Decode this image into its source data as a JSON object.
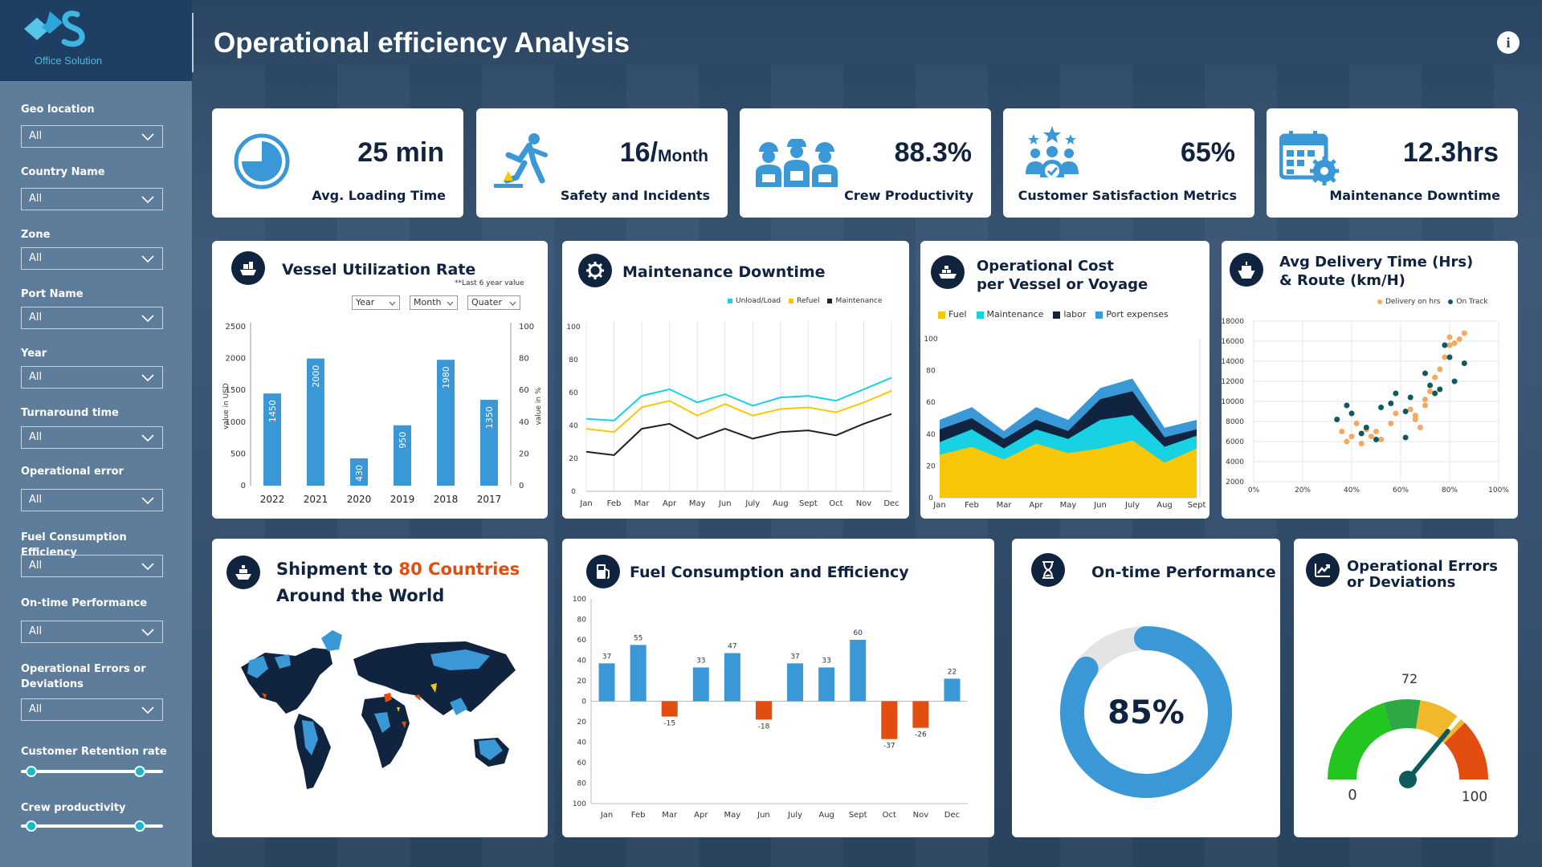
{
  "app": {
    "title": "Operational efficiency Analysis",
    "logo_text": "Office Solution",
    "info_symbol": "i"
  },
  "colors": {
    "navy": "#10233f",
    "blue": "#3a98d6",
    "cyan": "#18d1e3",
    "yellow": "#f9c708",
    "orange": "#e24e0f",
    "green": "#29cc2b"
  },
  "filters": [
    {
      "label": "Geo location",
      "value": "All"
    },
    {
      "label": "Country Name",
      "value": "All"
    },
    {
      "label": "Zone",
      "value": "All"
    },
    {
      "label": "Port Name",
      "value": "All"
    },
    {
      "label": "Year",
      "value": "All"
    },
    {
      "label": "Turnaround time",
      "value": "All"
    },
    {
      "label": "Operational error",
      "value": "All"
    },
    {
      "label": "Fuel Consumption Efficiency",
      "value": "All"
    },
    {
      "label": "On-time Performance",
      "value": "All"
    },
    {
      "label": "Operational Errors or Deviations",
      "value": "All"
    }
  ],
  "sliders": [
    {
      "label": "Customer Retention rate",
      "low": 0,
      "high": 1
    },
    {
      "label": "Crew productivity",
      "low": 0,
      "high": 1
    }
  ],
  "kpis": [
    {
      "value": "25 min",
      "label": "Avg. Loading Time",
      "icon": "clock-icon"
    },
    {
      "value": "16/",
      "unit": "Month",
      "label": "Safety and Incidents",
      "icon": "slip-hazard-icon"
    },
    {
      "value": "88.3%",
      "label": "Crew Productivity",
      "icon": "workers-icon"
    },
    {
      "value": "65%",
      "label": "Customer Satisfaction Metrics",
      "icon": "star-people-icon"
    },
    {
      "value": "12.3hrs",
      "label": "Maintenance Downtime",
      "icon": "calendar-gear-icon"
    }
  ],
  "vessel": {
    "title": "Vessel Utilization Rate",
    "note": "**Last 6 year value",
    "selectors": [
      "Year",
      "Month",
      "Quater"
    ],
    "chart_data": {
      "type": "bar",
      "categories": [
        "2022",
        "2021",
        "2020",
        "2019",
        "2018",
        "2017"
      ],
      "values": [
        1450,
        2000,
        430,
        950,
        1980,
        1350
      ],
      "y_ticks": [
        "2500",
        "2000",
        "1500",
        "1000",
        "500",
        "0"
      ],
      "y2_ticks": [
        "100",
        "80",
        "60",
        "40",
        "20",
        "0"
      ],
      "ylabel": "value in USD",
      "y2label": "value in %",
      "ylim": [
        0,
        2500
      ]
    }
  },
  "maint": {
    "title": "Maintenance Downtime",
    "chart_data": {
      "type": "line",
      "categories": [
        "Jan",
        "Feb",
        "Mar",
        "Apr",
        "May",
        "Jun",
        "July",
        "Aug",
        "Sept",
        "Oct",
        "Nov",
        "Dec"
      ],
      "y_ticks": [
        "100",
        "80",
        "60",
        "40",
        "20",
        "0"
      ],
      "ylim": [
        0,
        100
      ],
      "series": [
        {
          "name": "Unload/Load",
          "color": "#18d1e3",
          "values": [
            44,
            43,
            58,
            62,
            54,
            59,
            52,
            57,
            58,
            55,
            62,
            69
          ]
        },
        {
          "name": "Refuel",
          "color": "#f9c708",
          "values": [
            38,
            36,
            51,
            55,
            46,
            53,
            46,
            50,
            51,
            48,
            54,
            61
          ]
        },
        {
          "name": "Maintenance",
          "color": "#222222",
          "values": [
            24,
            22,
            38,
            41,
            32,
            38,
            32,
            36,
            37,
            34,
            41,
            47
          ]
        }
      ]
    }
  },
  "opcost": {
    "title1": "Operational Cost",
    "title2": "per Vessel or Voyage",
    "chart_data": {
      "type": "area",
      "categories": [
        "Jan",
        "Feb",
        "Mar",
        "Apr",
        "May",
        "Jun",
        "July",
        "Aug",
        "Sept"
      ],
      "y_ticks": [
        "100",
        "80",
        "60",
        "40",
        "20",
        "0"
      ],
      "ylim": [
        0,
        100
      ],
      "series": [
        {
          "name": "Fuel",
          "color": "#f9c708",
          "values": [
            27,
            32,
            24,
            34,
            28,
            31,
            36,
            22,
            31
          ]
        },
        {
          "name": "Maintenance",
          "color": "#18d1e3",
          "values": [
            8,
            11,
            7,
            9,
            9,
            18,
            16,
            10,
            8
          ]
        },
        {
          "name": "labor",
          "color": "#10233f",
          "values": [
            8,
            7,
            6,
            6,
            5,
            13,
            15,
            6,
            4
          ]
        },
        {
          "name": "Port expenses",
          "color": "#3a98d6",
          "values": [
            6,
            7,
            5,
            8,
            7,
            7,
            8,
            6,
            6
          ]
        }
      ]
    }
  },
  "delivery": {
    "title1": "Avg Delivery Time (Hrs)",
    "title2": "& Route (km/H)",
    "chart_data": {
      "type": "scatter",
      "y_ticks": [
        "18000",
        "16000",
        "14000",
        "12000",
        "10000",
        "8000",
        "6000",
        "4000",
        "2000"
      ],
      "x_ticks": [
        "0%",
        "20%",
        "40%",
        "60%",
        "80%",
        "100%"
      ],
      "ylim": [
        2000,
        18000
      ],
      "xlim": [
        0,
        100
      ],
      "series": [
        {
          "name": "Delivery on hrs",
          "color": "#f4a860",
          "points": [
            [
              36,
              7000
            ],
            [
              38,
              6000
            ],
            [
              40,
              6500
            ],
            [
              42,
              7800
            ],
            [
              44,
              5800
            ],
            [
              46,
              7200
            ],
            [
              48,
              6500
            ],
            [
              50,
              7000
            ],
            [
              52,
              6200
            ],
            [
              56,
              7800
            ],
            [
              58,
              8800
            ],
            [
              64,
              9200
            ],
            [
              66,
              8600
            ],
            [
              68,
              7400
            ],
            [
              70,
              10200
            ],
            [
              72,
              11000
            ],
            [
              74,
              12400
            ],
            [
              76,
              13200
            ],
            [
              78,
              14400
            ],
            [
              80,
              15600
            ],
            [
              80,
              16400
            ],
            [
              82,
              15800
            ],
            [
              84,
              16200
            ],
            [
              86,
              16800
            ],
            [
              70,
              9600
            ],
            [
              66,
              8200
            ]
          ]
        },
        {
          "name": "On Track",
          "color": "#0d5b5e",
          "points": [
            [
              34,
              8200
            ],
            [
              38,
              9600
            ],
            [
              40,
              8800
            ],
            [
              44,
              6800
            ],
            [
              46,
              7400
            ],
            [
              50,
              6200
            ],
            [
              52,
              9400
            ],
            [
              56,
              9800
            ],
            [
              58,
              10800
            ],
            [
              62,
              9000
            ],
            [
              64,
              10400
            ],
            [
              70,
              12800
            ],
            [
              72,
              11600
            ],
            [
              76,
              11200
            ],
            [
              78,
              15600
            ],
            [
              80,
              14400
            ],
            [
              82,
              12000
            ],
            [
              86,
              13800
            ],
            [
              74,
              10800
            ],
            [
              62,
              6400
            ]
          ]
        }
      ]
    }
  },
  "shipment": {
    "title_a": "Shipment to ",
    "title_highlight": "80 Countries",
    "title_b": "Around the World"
  },
  "fuel": {
    "title": "Fuel Consumption and Efficiency",
    "chart_data": {
      "type": "bar",
      "categories": [
        "Jan",
        "Feb",
        "Mar",
        "Apr",
        "May",
        "Jun",
        "July",
        "Aug",
        "Sept",
        "Oct",
        "Nov",
        "Dec"
      ],
      "values": [
        37,
        55,
        -15,
        33,
        47,
        -18,
        37,
        33,
        60,
        -37,
        -26,
        22
      ],
      "y_ticks": [
        "100",
        "80",
        "60",
        "40",
        "20",
        "0",
        "20",
        "40",
        "60",
        "80",
        "100"
      ],
      "ylim": [
        -100,
        100
      ]
    }
  },
  "ontime": {
    "title": "On-time Performance",
    "value": "85%",
    "chart_data": {
      "type": "pie",
      "value": 85,
      "max": 100
    }
  },
  "errors": {
    "title1": "Operational Errors",
    "title2": "or Deviations",
    "value": "72",
    "min": "0",
    "max": "100",
    "chart_data": {
      "type": "gauge",
      "value": 72,
      "min": 0,
      "max": 100
    }
  }
}
